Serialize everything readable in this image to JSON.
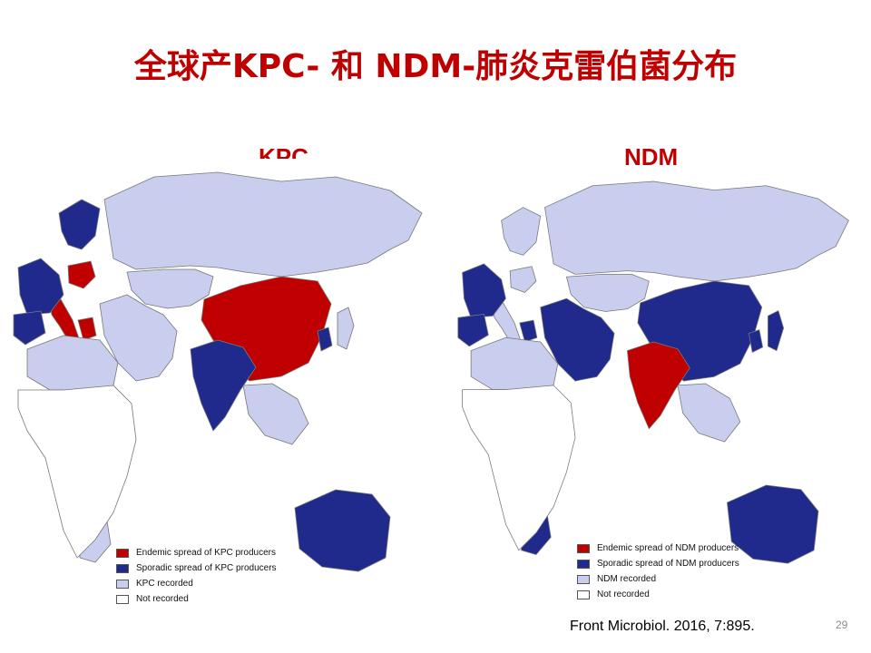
{
  "slide": {
    "title": "全球产KPC- 和 NDM-肺炎克雷伯菌分布",
    "citation": "Front Microbiol. 2016, 7:895.",
    "page_number": "29"
  },
  "colors": {
    "title": "#c00000",
    "endemic": "#c00000",
    "sporadic": "#1f2a8c",
    "recorded": "#c9cdee",
    "not_recorded": "#ffffff"
  },
  "maps": [
    {
      "label": "KPC",
      "legend": [
        {
          "text": "Endemic spread of KPC producers",
          "status": "endemic"
        },
        {
          "text": "Sporadic spread of KPC producers",
          "status": "sporadic"
        },
        {
          "text": "KPC recorded",
          "status": "recorded"
        },
        {
          "text": "Not recorded",
          "status": "not_recorded"
        }
      ],
      "regions": {
        "russia": "recorded",
        "china": "endemic",
        "india": "sporadic",
        "australia": "sporadic",
        "italy": "endemic",
        "greece": "endemic",
        "poland": "endemic",
        "scandinavia": "sporadic",
        "western_europe": "sporadic",
        "iberia": "sporadic",
        "north_africa": "recorded",
        "middle_east": "recorded",
        "central_asia": "recorded",
        "southeast_asia": "recorded",
        "korea": "sporadic",
        "japan": "recorded",
        "south_africa": "recorded",
        "africa_rest": "not_recorded"
      }
    },
    {
      "label": "NDM",
      "legend": [
        {
          "text": "Endemic spread of NDM producers",
          "status": "endemic"
        },
        {
          "text": "Sporadic spread of NDM producers",
          "status": "sporadic"
        },
        {
          "text": "NDM recorded",
          "status": "recorded"
        },
        {
          "text": "Not recorded",
          "status": "not_recorded"
        }
      ],
      "regions": {
        "russia": "recorded",
        "china": "sporadic",
        "india": "endemic",
        "australia": "sporadic",
        "italy": "recorded",
        "greece": "sporadic",
        "poland": "recorded",
        "scandinavia": "recorded",
        "western_europe": "sporadic",
        "iberia": "sporadic",
        "north_africa": "recorded",
        "middle_east": "sporadic",
        "central_asia": "recorded",
        "southeast_asia": "recorded",
        "korea": "sporadic",
        "japan": "sporadic",
        "south_africa": "sporadic",
        "africa_rest": "not_recorded"
      }
    }
  ]
}
